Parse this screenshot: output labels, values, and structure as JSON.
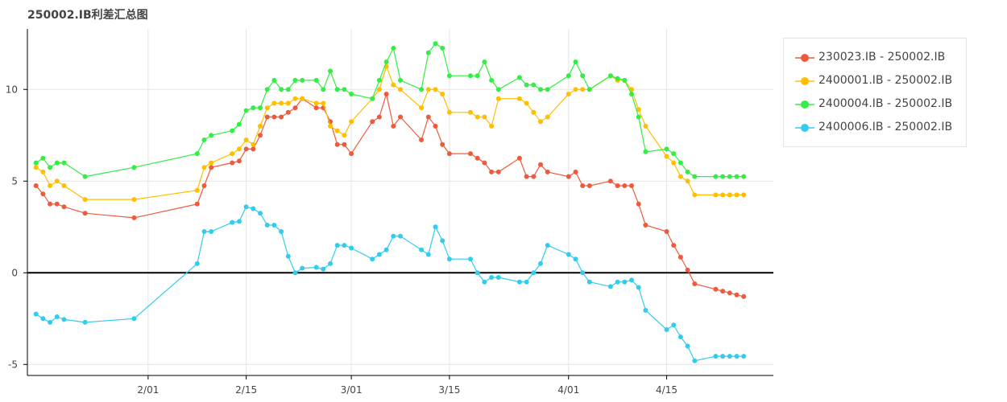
{
  "colors": {
    "background": "#ffffff",
    "grid": "#e5e5e5",
    "zero_line": "#000000",
    "axis": "#000000",
    "text": "#444444"
  },
  "chart_data": {
    "type": "line",
    "title": "250002.IB利差汇总图",
    "xlabel": "",
    "ylabel": "",
    "x_type": "date",
    "year": 2024,
    "xlim": [
      "2024-01-15",
      "2024-04-30"
    ],
    "ylim": [
      -5.6,
      13.3
    ],
    "xticks": [
      {
        "date": "2024-02-01",
        "label": "2/01"
      },
      {
        "date": "2024-02-15",
        "label": "2/15"
      },
      {
        "date": "2024-03-01",
        "label": "3/01"
      },
      {
        "date": "2024-03-15",
        "label": "3/15"
      },
      {
        "date": "2024-04-01",
        "label": "4/01"
      },
      {
        "date": "2024-04-15",
        "label": "4/15"
      }
    ],
    "yticks": [
      -5,
      0,
      5,
      10
    ],
    "grid": true,
    "legend_position": "right",
    "reference_line": {
      "y": 0,
      "color": "#000000"
    },
    "x": [
      "2024-01-16",
      "2024-01-17",
      "2024-01-18",
      "2024-01-19",
      "2024-01-20",
      "2024-01-23",
      "2024-01-30",
      "2024-02-08",
      "2024-02-09",
      "2024-02-10",
      "2024-02-13",
      "2024-02-14",
      "2024-02-15",
      "2024-02-16",
      "2024-02-17",
      "2024-02-18",
      "2024-02-19",
      "2024-02-20",
      "2024-02-21",
      "2024-02-22",
      "2024-02-23",
      "2024-02-25",
      "2024-02-26",
      "2024-02-27",
      "2024-02-28",
      "2024-02-29",
      "2024-03-01",
      "2024-03-04",
      "2024-03-05",
      "2024-03-06",
      "2024-03-07",
      "2024-03-08",
      "2024-03-11",
      "2024-03-12",
      "2024-03-13",
      "2024-03-14",
      "2024-03-15",
      "2024-03-18",
      "2024-03-19",
      "2024-03-20",
      "2024-03-21",
      "2024-03-22",
      "2024-03-25",
      "2024-03-26",
      "2024-03-27",
      "2024-03-28",
      "2024-03-29",
      "2024-04-01",
      "2024-04-02",
      "2024-04-03",
      "2024-04-04",
      "2024-04-07",
      "2024-04-08",
      "2024-04-09",
      "2024-04-10",
      "2024-04-11",
      "2024-04-12",
      "2024-04-15",
      "2024-04-16",
      "2024-04-17",
      "2024-04-18",
      "2024-04-19",
      "2024-04-22",
      "2024-04-23",
      "2024-04-24",
      "2024-04-25",
      "2024-04-26"
    ],
    "series": [
      {
        "name": "230023.IB - 250002.IB",
        "color": "#f05a3c",
        "values": [
          4.75,
          4.3,
          3.75,
          3.75,
          3.6,
          3.25,
          3.0,
          3.75,
          4.75,
          5.75,
          6.0,
          6.1,
          6.75,
          6.75,
          7.5,
          8.5,
          8.5,
          8.5,
          8.75,
          9.0,
          9.5,
          9.0,
          9.0,
          8.25,
          7.0,
          7.0,
          6.5,
          8.25,
          8.5,
          9.75,
          8.0,
          8.5,
          7.25,
          8.5,
          8.0,
          7.0,
          6.5,
          6.5,
          6.25,
          6.0,
          5.5,
          5.5,
          6.25,
          5.25,
          5.25,
          5.9,
          5.5,
          5.25,
          5.5,
          4.75,
          4.75,
          5.0,
          4.75,
          4.75,
          4.75,
          3.75,
          2.6,
          2.25,
          1.5,
          0.85,
          0.15,
          -0.6,
          -0.9,
          -1.0,
          -1.1,
          -1.2,
          -1.3
        ]
      },
      {
        "name": "2400001.IB - 250002.IB",
        "color": "#ffbf00",
        "values": [
          5.75,
          5.5,
          4.75,
          5.0,
          4.75,
          4.0,
          4.0,
          4.5,
          5.75,
          6.0,
          6.5,
          6.75,
          7.25,
          7.0,
          8.0,
          9.0,
          9.25,
          9.25,
          9.25,
          9.5,
          9.5,
          9.25,
          9.25,
          8.0,
          7.75,
          7.5,
          8.25,
          9.5,
          10.0,
          11.25,
          10.25,
          10.0,
          9.0,
          10.0,
          10.0,
          9.75,
          8.75,
          8.75,
          8.5,
          8.5,
          8.0,
          9.5,
          9.5,
          9.25,
          8.75,
          8.25,
          8.5,
          9.75,
          10.0,
          10.0,
          10.0,
          10.75,
          10.5,
          10.5,
          10.0,
          8.9,
          8.0,
          6.35,
          6.0,
          5.25,
          5.0,
          4.25,
          4.25,
          4.25,
          4.25,
          4.25,
          4.25
        ]
      },
      {
        "name": "2400004.IB - 250002.IB",
        "color": "#33ee44",
        "values": [
          6.0,
          6.25,
          5.75,
          6.0,
          6.0,
          5.25,
          5.75,
          6.5,
          7.25,
          7.5,
          7.75,
          8.1,
          8.85,
          9.0,
          9.0,
          10.0,
          10.5,
          10.0,
          10.0,
          10.5,
          10.5,
          10.5,
          10.0,
          11.0,
          10.0,
          10.0,
          9.75,
          9.5,
          10.5,
          11.5,
          12.25,
          10.5,
          10.0,
          12.0,
          12.5,
          12.25,
          10.75,
          10.75,
          10.75,
          11.5,
          10.5,
          10.0,
          10.65,
          10.25,
          10.25,
          10.0,
          10.0,
          10.75,
          11.5,
          10.75,
          10.0,
          10.75,
          10.6,
          10.5,
          9.75,
          8.5,
          6.6,
          6.75,
          6.5,
          6.0,
          5.5,
          5.25,
          5.25,
          5.25,
          5.25,
          5.25,
          5.25
        ]
      },
      {
        "name": "2400006.IB - 250002.IB",
        "color": "#33ccee",
        "values": [
          -2.25,
          -2.5,
          -2.7,
          -2.4,
          -2.55,
          -2.7,
          -2.5,
          0.5,
          2.25,
          2.25,
          2.75,
          2.8,
          3.6,
          3.5,
          3.25,
          2.6,
          2.6,
          2.25,
          0.9,
          0.0,
          0.25,
          0.3,
          0.2,
          0.5,
          1.5,
          1.5,
          1.35,
          0.75,
          1.0,
          1.25,
          2.0,
          2.0,
          1.25,
          1.0,
          2.5,
          1.75,
          0.75,
          0.75,
          0.0,
          -0.5,
          -0.25,
          -0.25,
          -0.5,
          -0.5,
          0.0,
          0.5,
          1.5,
          1.0,
          0.75,
          0.0,
          -0.5,
          -0.75,
          -0.5,
          -0.5,
          -0.4,
          -0.8,
          -2.05,
          -3.1,
          -2.85,
          -3.5,
          -4.0,
          -4.8,
          -4.55,
          -4.55,
          -4.55,
          -4.55,
          -4.55
        ]
      }
    ]
  }
}
